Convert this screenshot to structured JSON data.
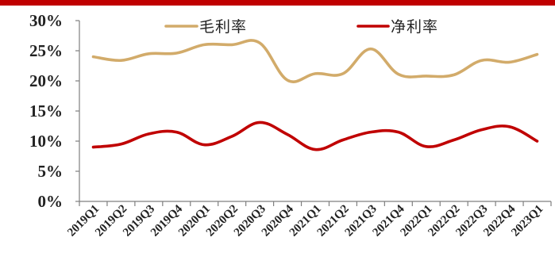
{
  "colors": {
    "top_rule": "#c00000",
    "axis": "#7f7f7f",
    "tick_text": "#222222"
  },
  "chart_data": {
    "type": "line",
    "categories": [
      "2019Q1",
      "2019Q2",
      "2019Q3",
      "2019Q4",
      "2020Q1",
      "2020Q2",
      "2020Q3",
      "2020Q4",
      "2021Q1",
      "2021Q2",
      "2021Q3",
      "2021Q4",
      "2022Q1",
      "2022Q2",
      "2022Q3",
      "2022Q4",
      "2023Q1"
    ],
    "series": [
      {
        "name": "毛利率",
        "color": "#d2ab6a",
        "values": [
          24.0,
          23.4,
          24.5,
          24.6,
          26.0,
          26.0,
          26.3,
          20.1,
          21.2,
          21.2,
          25.3,
          21.1,
          20.8,
          21.0,
          23.4,
          23.1,
          24.4
        ]
      },
      {
        "name": "净利率",
        "color": "#c00000",
        "values": [
          9.0,
          9.5,
          11.2,
          11.5,
          9.4,
          10.8,
          13.1,
          11.1,
          8.6,
          10.2,
          11.5,
          11.5,
          9.1,
          10.2,
          11.9,
          12.4,
          10.0
        ]
      }
    ],
    "yticks": [
      "0%",
      "5%",
      "10%",
      "15%",
      "20%",
      "25%",
      "30%"
    ],
    "ylim": [
      0,
      30
    ],
    "legend_position": "top"
  }
}
